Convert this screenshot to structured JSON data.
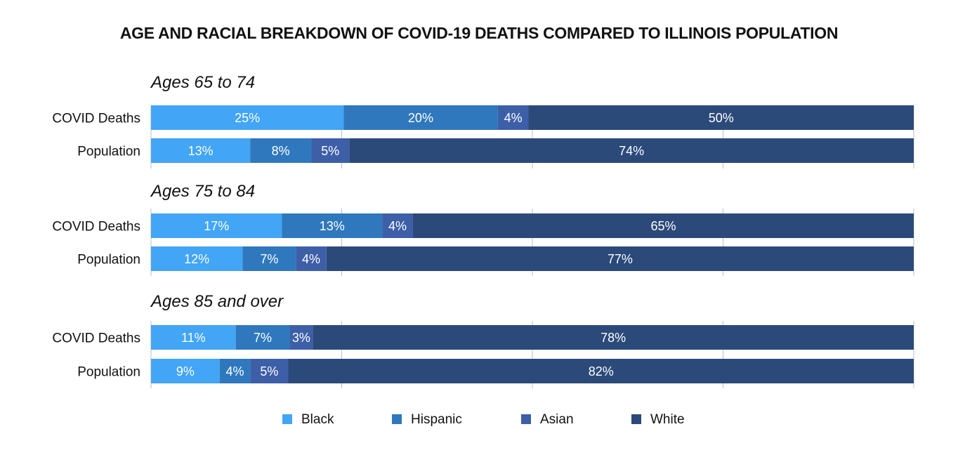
{
  "title": "AGE AND RACIAL BREAKDOWN OF COVID-19 DEATHS COMPARED TO ILLINOIS POPULATION",
  "colors": {
    "Black": "#42a5f5",
    "Hispanic": "#2f78bd",
    "Asian": "#3d5fa8",
    "White": "#2b4a7a"
  },
  "chart_data": {
    "type": "bar",
    "orientation": "horizontal",
    "stacked": true,
    "xlim": [
      0,
      100
    ],
    "grid": true,
    "legend_position": "bottom",
    "series_names": [
      "Black",
      "Hispanic",
      "Asian",
      "White"
    ],
    "panels": [
      {
        "title": "Ages 65 to 74",
        "rows": [
          {
            "label": "COVID Deaths",
            "values": [
              25,
              20,
              4,
              50
            ],
            "labels": [
              "25%",
              "20%",
              "4%",
              "50%"
            ]
          },
          {
            "label": "Population",
            "values": [
              13,
              8,
              5,
              74
            ],
            "labels": [
              "13%",
              "8%",
              "5%",
              "74%"
            ]
          }
        ]
      },
      {
        "title": "Ages 75 to 84",
        "rows": [
          {
            "label": "COVID Deaths",
            "values": [
              17,
              13,
              4,
              65
            ],
            "labels": [
              "17%",
              "13%",
              "4%",
              "65%"
            ]
          },
          {
            "label": "Population",
            "values": [
              12,
              7,
              4,
              77
            ],
            "labels": [
              "12%",
              "7%",
              "4%",
              "77%"
            ]
          }
        ]
      },
      {
        "title": "Ages 85 and over",
        "rows": [
          {
            "label": "COVID Deaths",
            "values": [
              11,
              7,
              3,
              78
            ],
            "labels": [
              "11%",
              "7%",
              "3%",
              "78%"
            ]
          },
          {
            "label": "Population",
            "values": [
              9,
              4,
              5,
              82
            ],
            "labels": [
              "9%",
              "4%",
              "5%",
              "82%"
            ]
          }
        ]
      }
    ],
    "legend": [
      "Black",
      "Hispanic",
      "Asian",
      "White"
    ]
  }
}
